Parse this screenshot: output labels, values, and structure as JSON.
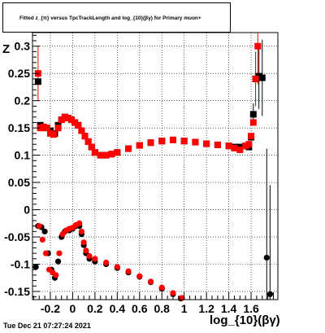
{
  "title_text": "Fitted z_{π} versus TpcTrackLength and log_{10}(βγ) for Primary muon+",
  "ylabel_text": "Z",
  "xlabel_text": "log_{10}(βγ)",
  "timestamp": "Tue Dec 21 07:27:24 2021",
  "chart_data": {
    "type": "scatter",
    "title": "Fitted z_{π} versus TpcTrackLength and log_{10}(βγ) for Primary muon+",
    "xlabel": "log_{10}(βγ)",
    "ylabel": "Z",
    "xlim": [
      -0.36,
      1.84
    ],
    "ylim": [
      -0.165,
      0.325
    ],
    "grid": true,
    "x_tick_labels": [
      "-0.2",
      "0",
      "0.2",
      "0.4",
      "0.6",
      "0.8",
      "1",
      "1.2",
      "1.4",
      "1.6"
    ],
    "y_tick_labels": [
      "-0.15",
      "-0.1",
      "-0.05",
      "0",
      "0.05",
      "0.1",
      "0.15",
      "0.2",
      "0.25",
      "0.3"
    ],
    "series": [
      {
        "marker": "square",
        "color": "#000000",
        "points": [
          [
            -0.31,
            0.235
          ],
          [
            -0.29,
            0.155
          ],
          [
            -0.24,
            0.15
          ],
          [
            -0.2,
            0.145
          ],
          [
            -0.16,
            0.14
          ],
          [
            -0.13,
            0.155
          ],
          [
            -0.1,
            0.165
          ],
          [
            -0.07,
            0.17
          ],
          [
            -0.04,
            0.168
          ],
          [
            -0.01,
            0.165
          ],
          [
            0.02,
            0.16
          ],
          [
            0.05,
            0.155
          ],
          [
            0.08,
            0.145
          ],
          [
            0.11,
            0.135
          ],
          [
            0.14,
            0.125
          ],
          [
            0.17,
            0.115
          ],
          [
            0.2,
            0.105
          ],
          [
            0.25,
            0.1
          ],
          [
            0.3,
            0.1
          ],
          [
            0.35,
            0.102
          ],
          [
            0.4,
            0.105
          ],
          [
            0.5,
            0.112
          ],
          [
            0.6,
            0.118
          ],
          [
            0.7,
            0.123
          ],
          [
            0.8,
            0.126
          ],
          [
            0.9,
            0.128
          ],
          [
            1.0,
            0.126
          ],
          [
            1.1,
            0.124
          ],
          [
            1.2,
            0.121
          ],
          [
            1.3,
            0.119
          ],
          [
            1.4,
            0.117
          ],
          [
            1.45,
            0.115
          ],
          [
            1.5,
            0.115
          ],
          [
            1.55,
            0.117
          ],
          [
            1.58,
            0.115
          ],
          [
            1.6,
            0.133
          ],
          [
            1.62,
            0.175
          ],
          [
            1.64,
            0.24
          ],
          [
            1.67,
            0.245
          ],
          [
            1.7,
            0.242
          ]
        ],
        "errors": [
          [
            1.62,
            0.02
          ],
          [
            1.64,
            0.05
          ],
          [
            1.67,
            0.06
          ],
          [
            1.7,
            0.07
          ]
        ]
      },
      {
        "marker": "square",
        "color": "#ff0000",
        "points": [
          [
            -0.31,
            0.25
          ],
          [
            -0.29,
            0.15
          ],
          [
            -0.26,
            0.152
          ],
          [
            -0.23,
            0.15
          ],
          [
            -0.2,
            0.14
          ],
          [
            -0.17,
            0.138
          ],
          [
            -0.13,
            0.15
          ],
          [
            -0.1,
            0.165
          ],
          [
            -0.07,
            0.17
          ],
          [
            -0.04,
            0.168
          ],
          [
            -0.01,
            0.165
          ],
          [
            0.02,
            0.16
          ],
          [
            0.05,
            0.155
          ],
          [
            0.08,
            0.145
          ],
          [
            0.11,
            0.135
          ],
          [
            0.14,
            0.125
          ],
          [
            0.17,
            0.115
          ],
          [
            0.2,
            0.105
          ],
          [
            0.25,
            0.1
          ],
          [
            0.3,
            0.1
          ],
          [
            0.35,
            0.102
          ],
          [
            0.4,
            0.105
          ],
          [
            0.5,
            0.112
          ],
          [
            0.6,
            0.118
          ],
          [
            0.7,
            0.123
          ],
          [
            0.8,
            0.126
          ],
          [
            0.9,
            0.128
          ],
          [
            1.0,
            0.126
          ],
          [
            1.1,
            0.124
          ],
          [
            1.2,
            0.121
          ],
          [
            1.3,
            0.119
          ],
          [
            1.4,
            0.117
          ],
          [
            1.45,
            0.113
          ],
          [
            1.5,
            0.11
          ],
          [
            1.55,
            0.117
          ],
          [
            1.58,
            0.12
          ],
          [
            1.6,
            0.135
          ],
          [
            1.62,
            0.16
          ],
          [
            1.64,
            0.24
          ],
          [
            1.66,
            0.3
          ]
        ],
        "errors": [
          [
            -0.31,
            0.05
          ],
          [
            1.64,
            0.05
          ],
          [
            1.66,
            0.07
          ]
        ]
      },
      {
        "marker": "circle",
        "color": "#000000",
        "points": [
          [
            -0.33,
            -0.105
          ],
          [
            -0.31,
            -0.03
          ],
          [
            -0.28,
            -0.032
          ],
          [
            -0.25,
            -0.04
          ],
          [
            -0.22,
            -0.08
          ],
          [
            -0.19,
            -0.11
          ],
          [
            -0.16,
            -0.125
          ],
          [
            -0.13,
            -0.095
          ],
          [
            -0.1,
            -0.05
          ],
          [
            -0.07,
            -0.04
          ],
          [
            -0.03,
            -0.038
          ],
          [
            0.0,
            -0.035
          ],
          [
            0.03,
            -0.03
          ],
          [
            0.06,
            -0.03
          ],
          [
            0.08,
            -0.045
          ],
          [
            0.1,
            -0.065
          ],
          [
            0.12,
            -0.08
          ],
          [
            0.15,
            -0.09
          ],
          [
            0.2,
            -0.095
          ],
          [
            0.3,
            -0.1
          ],
          [
            0.4,
            -0.107
          ],
          [
            0.5,
            -0.115
          ],
          [
            0.6,
            -0.123
          ],
          [
            0.7,
            -0.133
          ],
          [
            0.8,
            -0.145
          ],
          [
            0.9,
            -0.155
          ],
          [
            0.97,
            -0.163
          ],
          [
            1.74,
            -0.088
          ],
          [
            1.77,
            -0.155
          ]
        ],
        "errors": [
          [
            1.74,
            0.2
          ],
          [
            1.77,
            0.2
          ]
        ]
      },
      {
        "marker": "circle",
        "color": "#ff0000",
        "points": [
          [
            -0.3,
            -0.03
          ],
          [
            -0.27,
            -0.055
          ],
          [
            -0.24,
            -0.08
          ],
          [
            -0.21,
            -0.11
          ],
          [
            -0.18,
            -0.115
          ],
          [
            -0.15,
            -0.12
          ],
          [
            -0.12,
            -0.08
          ],
          [
            -0.09,
            -0.045
          ],
          [
            -0.06,
            -0.038
          ],
          [
            -0.03,
            -0.035
          ],
          [
            0.0,
            -0.033
          ],
          [
            0.03,
            -0.028
          ],
          [
            0.06,
            -0.025
          ],
          [
            0.08,
            -0.04
          ],
          [
            0.1,
            -0.06
          ],
          [
            0.12,
            -0.075
          ],
          [
            0.15,
            -0.085
          ],
          [
            0.2,
            -0.09
          ],
          [
            0.3,
            -0.097
          ],
          [
            0.4,
            -0.105
          ],
          [
            0.5,
            -0.113
          ],
          [
            0.6,
            -0.122
          ],
          [
            0.7,
            -0.132
          ],
          [
            0.8,
            -0.143
          ],
          [
            0.9,
            -0.153
          ],
          [
            0.98,
            -0.162
          ]
        ],
        "errors": []
      }
    ]
  }
}
